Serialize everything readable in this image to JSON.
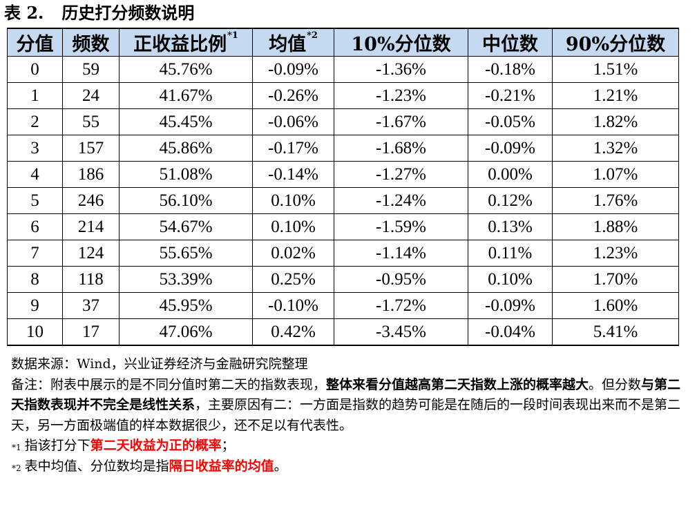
{
  "title": {
    "label": "表 2.",
    "text": "历史打分频数说明"
  },
  "table": {
    "headers": [
      {
        "text": "分值",
        "fn": ""
      },
      {
        "text": "频数",
        "fn": ""
      },
      {
        "text": "正收益比例",
        "fn": "*1"
      },
      {
        "text": "均值",
        "fn": "*2"
      },
      {
        "text": "10%分位数",
        "fn": ""
      },
      {
        "text": "中位数",
        "fn": ""
      },
      {
        "text": "90%分位数",
        "fn": ""
      }
    ],
    "rows": [
      [
        "0",
        "59",
        "45.76%",
        "-0.09%",
        "-1.36%",
        "-0.18%",
        "1.51%"
      ],
      [
        "1",
        "24",
        "41.67%",
        "-0.26%",
        "-1.23%",
        "-0.21%",
        "1.21%"
      ],
      [
        "2",
        "55",
        "45.45%",
        "-0.06%",
        "-1.67%",
        "-0.05%",
        "1.82%"
      ],
      [
        "3",
        "157",
        "45.86%",
        "-0.17%",
        "-1.68%",
        "-0.09%",
        "1.32%"
      ],
      [
        "4",
        "186",
        "51.08%",
        "-0.14%",
        "-1.27%",
        "0.00%",
        "1.07%"
      ],
      [
        "5",
        "246",
        "56.10%",
        "0.10%",
        "-1.24%",
        "0.12%",
        "1.76%"
      ],
      [
        "6",
        "214",
        "54.67%",
        "0.10%",
        "-1.59%",
        "0.13%",
        "1.88%"
      ],
      [
        "7",
        "124",
        "55.65%",
        "0.02%",
        "-1.14%",
        "0.11%",
        "1.23%"
      ],
      [
        "8",
        "118",
        "53.39%",
        "0.25%",
        "-0.95%",
        "0.10%",
        "1.70%"
      ],
      [
        "9",
        "37",
        "45.95%",
        "-0.10%",
        "-1.72%",
        "-0.09%",
        "1.60%"
      ],
      [
        "10",
        "17",
        "47.06%",
        "0.42%",
        "-3.45%",
        "-0.04%",
        "5.41%"
      ]
    ]
  },
  "notes": {
    "source": "数据来源：Wind，兴业证券经济与金融研究院整理",
    "remark_prefix": "备注：附表中展示的是不同分值时第二天的指数表现，",
    "remark_bold1": "整体来看分值越高第二天指数上涨的概率越大",
    "remark_mid": "。但分数",
    "remark_bold2": "与第二天指数表现并不完全是线性关系",
    "remark_rest": "，主要原因有二：一方面是指数的趋势可能是在随后的一段时间表现出来而不是第二天，另一方面极端值的样本数据很少，还不足以有代表性。",
    "fn1_mark": "*1",
    "fn1_prefix": "指该打分下",
    "fn1_red": "第二天收益为正的概率",
    "fn1_suffix": "；",
    "fn2_mark": "*2",
    "fn2_prefix": "表中均值、分位数均是指",
    "fn2_red": "隔日收益率的均值",
    "fn2_suffix": "。"
  },
  "colors": {
    "header_background": "#c5d9f1",
    "highlight_red": "#ff0000"
  }
}
